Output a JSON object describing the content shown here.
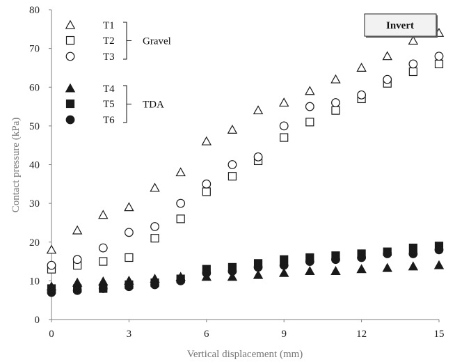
{
  "chart_data": {
    "type": "scatter",
    "title": "",
    "xlabel": "Vertical displacement (mm)",
    "ylabel": "Contact pressure (kPa)",
    "xlim": [
      0,
      15
    ],
    "ylim": [
      0,
      80
    ],
    "xticks": [
      0,
      3,
      6,
      9,
      12,
      15
    ],
    "yticks": [
      0,
      10,
      20,
      30,
      40,
      50,
      60,
      70,
      80
    ],
    "grid": false,
    "legend_position": "top-left",
    "annotation": "Invert",
    "legend_groups": [
      {
        "label": "Gravel",
        "series": [
          "T1",
          "T2",
          "T3"
        ]
      },
      {
        "label": "TDA",
        "series": [
          "T4",
          "T5",
          "T6"
        ]
      }
    ],
    "series": [
      {
        "name": "T1",
        "marker": "triangle-open",
        "x": [
          0,
          1,
          2,
          3,
          4,
          5,
          6,
          7,
          8,
          9,
          10,
          11,
          12,
          13,
          14,
          15
        ],
        "y": [
          18,
          23,
          27,
          29,
          34,
          38,
          46,
          49,
          54,
          56,
          59,
          62,
          65,
          68,
          72,
          74
        ]
      },
      {
        "name": "T2",
        "marker": "square-open",
        "x": [
          0,
          1,
          2,
          3,
          4,
          5,
          6,
          7,
          8,
          9,
          10,
          11,
          12,
          13,
          14,
          15
        ],
        "y": [
          13,
          14,
          15,
          16,
          21,
          26,
          33,
          37,
          41,
          47,
          51,
          54,
          57,
          61,
          64,
          66
        ]
      },
      {
        "name": "T3",
        "marker": "circle-open",
        "x": [
          0,
          1,
          2,
          3,
          4,
          5,
          6,
          7,
          8,
          9,
          10,
          11,
          12,
          13,
          14,
          15
        ],
        "y": [
          14,
          15.5,
          18.5,
          22.5,
          24,
          30,
          35,
          40,
          42,
          50,
          55,
          56,
          58,
          62,
          66,
          68
        ]
      },
      {
        "name": "T4",
        "marker": "triangle-filled",
        "x": [
          0,
          1,
          2,
          3,
          4,
          5,
          6,
          7,
          8,
          9,
          10,
          11,
          12,
          13,
          14,
          15
        ],
        "y": [
          8.5,
          9.5,
          9.8,
          10,
          10.5,
          11,
          11,
          11,
          11.5,
          12,
          12.5,
          12.5,
          13,
          13.3,
          13.7,
          14
        ]
      },
      {
        "name": "T5",
        "marker": "square-filled",
        "x": [
          0,
          1,
          2,
          3,
          4,
          5,
          6,
          7,
          8,
          9,
          10,
          11,
          12,
          13,
          14,
          15
        ],
        "y": [
          8,
          8,
          8,
          9,
          9.5,
          10.5,
          13,
          13.5,
          14.5,
          15.5,
          16,
          16.5,
          17,
          17.5,
          18.5,
          19
        ]
      },
      {
        "name": "T6",
        "marker": "circle-filled",
        "x": [
          0,
          1,
          2,
          3,
          4,
          5,
          6,
          7,
          8,
          9,
          10,
          11,
          12,
          13,
          14,
          15
        ],
        "y": [
          7,
          7.5,
          8,
          8.5,
          9,
          10,
          12,
          12.5,
          13.5,
          14,
          15,
          15.5,
          16,
          17,
          17,
          18
        ]
      }
    ],
    "colors": {
      "marker": "#1a1a1a",
      "axis": "#7f7f7f",
      "box_fill": "#f2f2f2"
    }
  }
}
